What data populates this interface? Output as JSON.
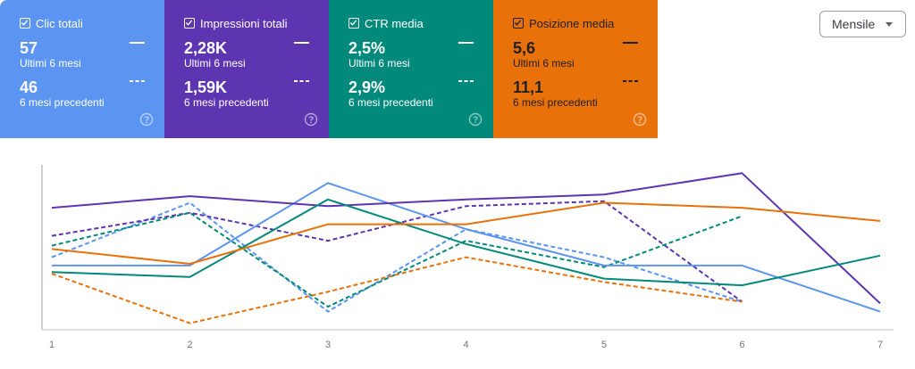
{
  "cards": [
    {
      "title": "Clic totali",
      "checked": true,
      "current_value": "57",
      "current_label": "Ultimi 6 mesi",
      "previous_value": "46",
      "previous_label": "6 mesi precedenti",
      "color": "#5B95F1"
    },
    {
      "title": "Impressioni totali",
      "checked": true,
      "current_value": "2,28K",
      "current_label": "Ultimi 6 mesi",
      "previous_value": "1,59K",
      "previous_label": "6 mesi precedenti",
      "color": "#5E35B1"
    },
    {
      "title": "CTR media",
      "checked": true,
      "current_value": "2,5%",
      "current_label": "Ultimi 6 mesi",
      "previous_value": "2,9%",
      "previous_label": "6 mesi precedenti",
      "color": "#01897B"
    },
    {
      "title": "Posizione media",
      "checked": true,
      "current_value": "5,6",
      "current_label": "Ultimi 6 mesi",
      "previous_value": "11,1",
      "previous_label": "6 mesi precedenti",
      "color": "#E8710A"
    }
  ],
  "period_select": {
    "selected": "Mensile"
  },
  "chart_data": {
    "type": "line",
    "title": "",
    "xlabel": "",
    "ylabel": "",
    "x": [
      1,
      2,
      3,
      4,
      5,
      6,
      7
    ],
    "grid": false,
    "legend_position": "cards-above",
    "note": "Values are relative normalized heights (0 = bottom of plot, 100 = top); each metric is independently scaled. Solid = Ultimi 6 mesi, dashed = 6 mesi precedenti.",
    "series": [
      {
        "name": "Clic totali - Ultimi 6 mesi",
        "color": "#5B95F1",
        "style": "solid",
        "values": [
          39,
          39,
          89,
          61,
          39,
          39,
          11
        ]
      },
      {
        "name": "Clic totali - 6 mesi precedenti",
        "color": "#5B95F1",
        "style": "dashed",
        "values": [
          44,
          77,
          11,
          61,
          44,
          17
        ]
      },
      {
        "name": "Impressioni totali - Ultimi 6 mesi",
        "color": "#5E35B1",
        "style": "solid",
        "values": [
          74,
          81,
          75,
          79,
          82,
          95,
          16
        ]
      },
      {
        "name": "Impressioni totali - 6 mesi precedenti",
        "color": "#5E35B1",
        "style": "dashed",
        "values": [
          57,
          71,
          54,
          75,
          78,
          17
        ]
      },
      {
        "name": "CTR media - Ultimi 6 mesi",
        "color": "#01897B",
        "style": "solid",
        "values": [
          35,
          32,
          79,
          52,
          31,
          27,
          45
        ]
      },
      {
        "name": "CTR media - 6 mesi precedenti",
        "color": "#01897B",
        "style": "dashed",
        "values": [
          51,
          71,
          14,
          54,
          38,
          69
        ]
      },
      {
        "name": "Posizione media - Ultimi 6 mesi",
        "color": "#E8710A",
        "style": "solid",
        "values": [
          49,
          40,
          64,
          64,
          77,
          74,
          66
        ]
      },
      {
        "name": "Posizione media - 6 mesi precedenti",
        "color": "#E8710A",
        "style": "dashed",
        "values": [
          34,
          4,
          23,
          44,
          29,
          17
        ]
      }
    ]
  }
}
